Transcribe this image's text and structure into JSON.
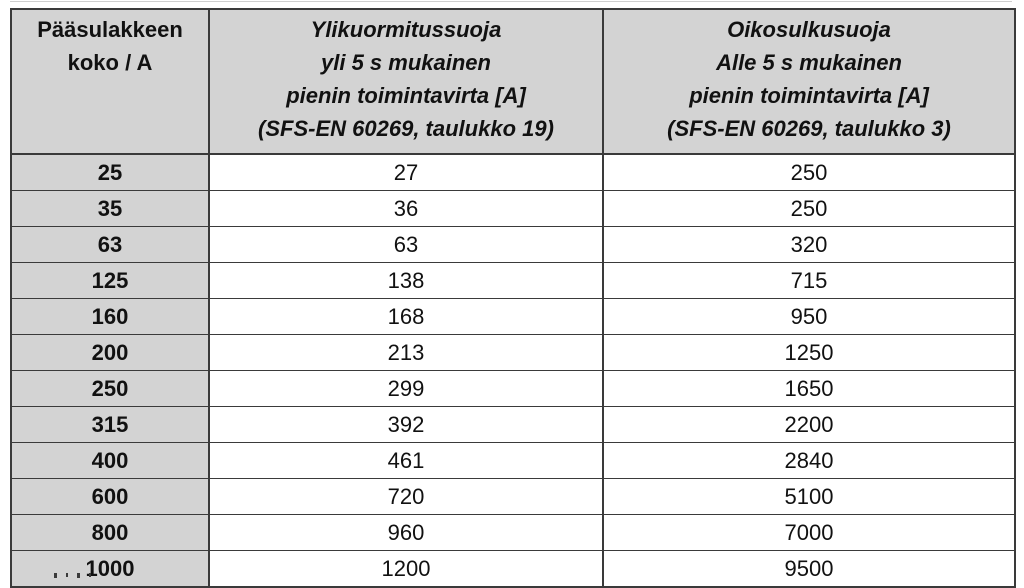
{
  "page": {
    "background": "#ffffff"
  },
  "table": {
    "colors": {
      "header_bg": "#d3d3d3",
      "first_col_bg": "#d3d3d3",
      "border": "#3a3a3a",
      "text": "#111111",
      "cell_bg": "#ffffff"
    },
    "headers": {
      "fuse_size": "Pääsulakkeen\nkoko / A",
      "overload": "Ylikuormitussuoja\nyli 5 s mukainen\npienin toimintavirta [A]\n(SFS-EN 60269, taulukko 19)",
      "short_circuit": "Oikosulkusuoja\nAlle 5 s mukainen\npienin toimintavirta [A]\n(SFS-EN 60269, taulukko 3)"
    },
    "rows": [
      [
        "25",
        "27",
        "250"
      ],
      [
        "35",
        "36",
        "250"
      ],
      [
        "63",
        "63",
        "320"
      ],
      [
        "125",
        "138",
        "715"
      ],
      [
        "160",
        "168",
        "950"
      ],
      [
        "200",
        "213",
        "1250"
      ],
      [
        "250",
        "299",
        "1650"
      ],
      [
        "315",
        "392",
        "2200"
      ],
      [
        "400",
        "461",
        "2840"
      ],
      [
        "600",
        "720",
        "5100"
      ],
      [
        "800",
        "960",
        "7000"
      ],
      [
        "1000",
        "1200",
        "9500"
      ]
    ]
  },
  "chart_data": {
    "type": "table",
    "title": "",
    "columns": [
      "Pääsulakkeen koko / A",
      "Ylikuormitussuoja yli 5 s mukainen pienin toimintavirta [A] (SFS-EN 60269, taulukko 19)",
      "Oikosulkusuoja Alle 5 s mukainen pienin toimintavirta [A] (SFS-EN 60269, taulukko 3)"
    ],
    "rows": [
      [
        25,
        27,
        250
      ],
      [
        35,
        36,
        250
      ],
      [
        63,
        63,
        320
      ],
      [
        125,
        138,
        715
      ],
      [
        160,
        168,
        950
      ],
      [
        200,
        213,
        1250
      ],
      [
        250,
        299,
        1650
      ],
      [
        315,
        392,
        2200
      ],
      [
        400,
        461,
        2840
      ],
      [
        600,
        720,
        5100
      ],
      [
        800,
        960,
        7000
      ],
      [
        1000,
        1200,
        9500
      ]
    ]
  }
}
